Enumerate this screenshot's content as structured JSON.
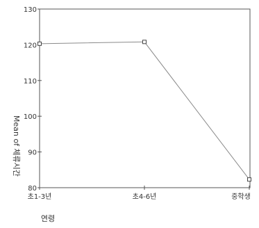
{
  "chart_data": {
    "type": "line",
    "title": "",
    "xlabel": "연령",
    "ylabel": "Mean of 체류시간",
    "categories": [
      "초1-3년",
      "초4-6년",
      "중학생"
    ],
    "series": [
      {
        "values": [
          120.3,
          120.8,
          82.3
        ]
      }
    ],
    "ylim": [
      80,
      130
    ],
    "yticks": [
      80,
      90,
      100,
      110,
      120,
      130
    ],
    "grid": false,
    "legend": "none",
    "colors": {
      "line": "#8a8a8a",
      "axis": "#555555",
      "marker": "#444444",
      "background": "#ffffff"
    }
  }
}
